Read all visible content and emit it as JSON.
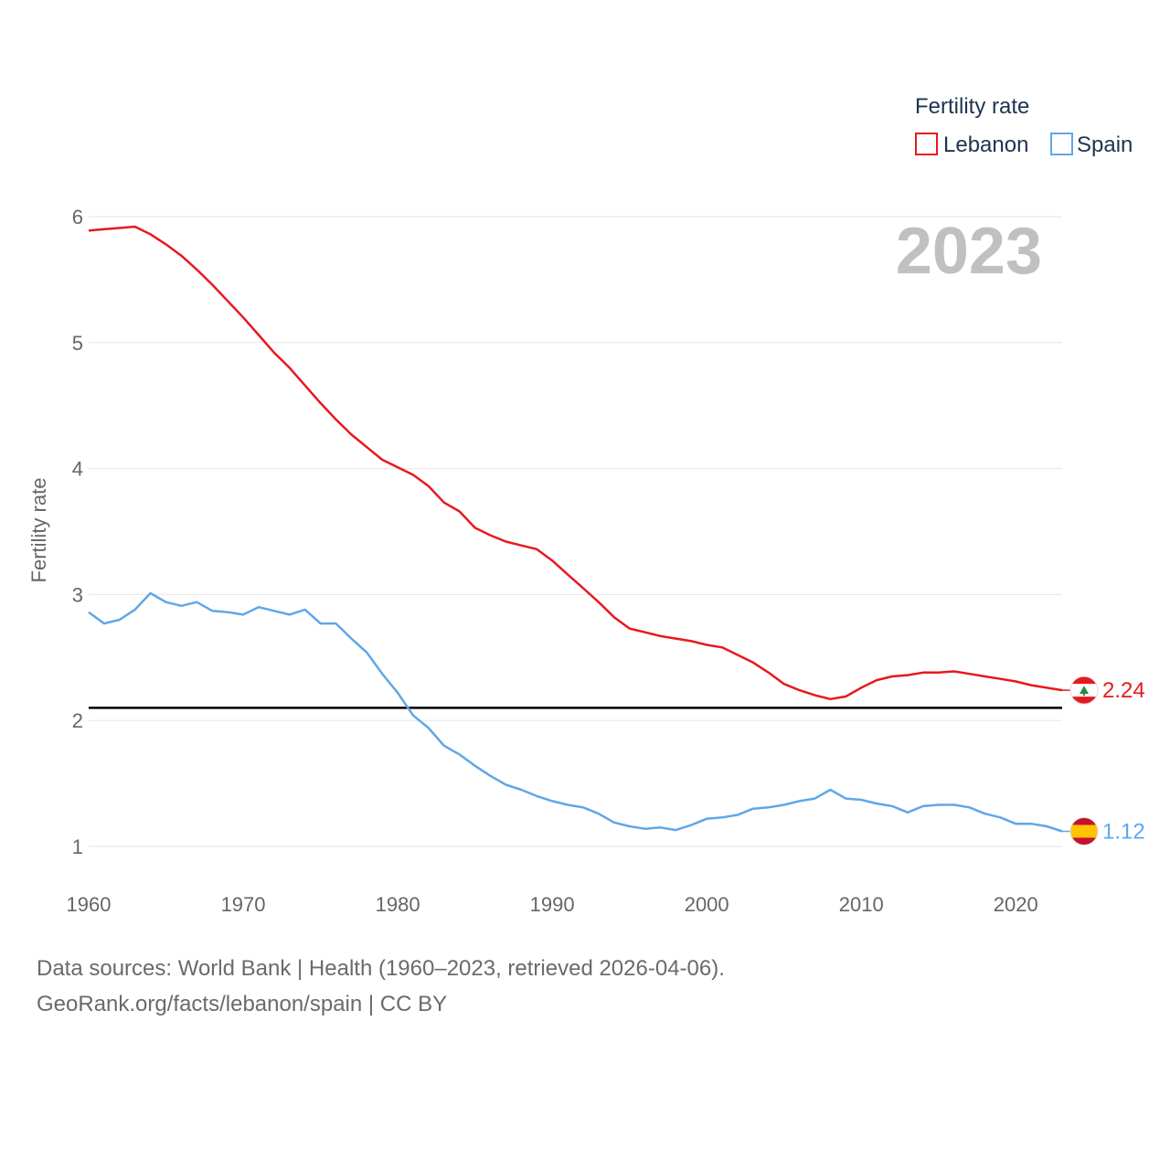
{
  "chart_data": {
    "type": "line",
    "xlabel": "",
    "ylabel": "Fertility rate",
    "xlim": [
      1960,
      2023
    ],
    "ylim": [
      0.75,
      6.1
    ],
    "x_ticks": [
      1960,
      1970,
      1980,
      1990,
      2000,
      2010,
      2020
    ],
    "y_ticks": [
      1,
      2,
      3,
      4,
      5,
      6
    ],
    "x_tick_labels": [
      "1960",
      "1970",
      "1980",
      "1990",
      "2000",
      "2010",
      "2020"
    ],
    "y_tick_labels": [
      "1",
      "2",
      "3",
      "4",
      "5",
      "6"
    ],
    "current_year_label": "2023",
    "reference_line": {
      "y": 2.1,
      "color": "#000000"
    },
    "legend": {
      "title": "Fertility rate",
      "position": "top-right",
      "entries": [
        {
          "name": "Lebanon",
          "color": "#e8181f"
        },
        {
          "name": "Spain",
          "color": "#5fa7e8"
        }
      ]
    },
    "x": [
      1960,
      1961,
      1962,
      1963,
      1964,
      1965,
      1966,
      1967,
      1968,
      1969,
      1970,
      1971,
      1972,
      1973,
      1974,
      1975,
      1976,
      1977,
      1978,
      1979,
      1980,
      1981,
      1982,
      1983,
      1984,
      1985,
      1986,
      1987,
      1988,
      1989,
      1990,
      1991,
      1992,
      1993,
      1994,
      1995,
      1996,
      1997,
      1998,
      1999,
      2000,
      2001,
      2002,
      2003,
      2004,
      2005,
      2006,
      2007,
      2008,
      2009,
      2010,
      2011,
      2012,
      2013,
      2014,
      2015,
      2016,
      2017,
      2018,
      2019,
      2020,
      2021,
      2022,
      2023
    ],
    "series": [
      {
        "name": "Lebanon",
        "color": "#e8181f",
        "end_label": "2.24",
        "flag": "lebanon-flag",
        "values": [
          5.89,
          5.9,
          5.91,
          5.92,
          5.86,
          5.78,
          5.69,
          5.58,
          5.46,
          5.33,
          5.2,
          5.06,
          4.92,
          4.8,
          4.66,
          4.52,
          4.39,
          4.27,
          4.17,
          4.07,
          4.01,
          3.95,
          3.86,
          3.73,
          3.66,
          3.53,
          3.47,
          3.42,
          3.39,
          3.36,
          3.27,
          3.16,
          3.05,
          2.94,
          2.82,
          2.73,
          2.7,
          2.67,
          2.65,
          2.63,
          2.6,
          2.58,
          2.52,
          2.46,
          2.38,
          2.29,
          2.24,
          2.2,
          2.17,
          2.19,
          2.26,
          2.32,
          2.35,
          2.36,
          2.38,
          2.38,
          2.39,
          2.37,
          2.35,
          2.33,
          2.31,
          2.28,
          2.26,
          2.24
        ]
      },
      {
        "name": "Spain",
        "color": "#5fa7e8",
        "end_label": "1.12",
        "flag": "spain-flag",
        "values": [
          2.86,
          2.77,
          2.8,
          2.88,
          3.01,
          2.94,
          2.91,
          2.94,
          2.87,
          2.86,
          2.84,
          2.9,
          2.87,
          2.84,
          2.88,
          2.77,
          2.77,
          2.65,
          2.54,
          2.37,
          2.22,
          2.04,
          1.94,
          1.8,
          1.73,
          1.64,
          1.56,
          1.49,
          1.45,
          1.4,
          1.36,
          1.33,
          1.31,
          1.26,
          1.19,
          1.16,
          1.14,
          1.15,
          1.13,
          1.17,
          1.22,
          1.23,
          1.25,
          1.3,
          1.31,
          1.33,
          1.36,
          1.38,
          1.45,
          1.38,
          1.37,
          1.34,
          1.32,
          1.27,
          1.32,
          1.33,
          1.33,
          1.31,
          1.26,
          1.23,
          1.18,
          1.18,
          1.16,
          1.12
        ]
      }
    ]
  },
  "footer": {
    "line1": "Data sources: World Bank | Health (1960–2023, retrieved 2026-04-06).",
    "line2": "GeoRank.org/facts/lebanon/spain | CC BY"
  }
}
